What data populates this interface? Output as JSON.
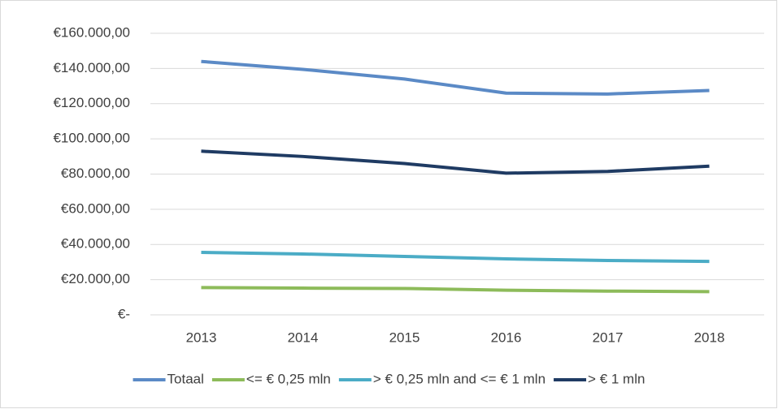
{
  "chart_data": {
    "type": "line",
    "categories": [
      "2013",
      "2014",
      "2015",
      "2016",
      "2017",
      "2018"
    ],
    "series": [
      {
        "name": "Totaal",
        "color": "#5b8ac6",
        "values": [
          144000,
          139500,
          134000,
          126000,
          125500,
          127500
        ]
      },
      {
        "name": "<= € 0,25 mln",
        "color": "#8dbb5a",
        "values": [
          15500,
          15200,
          15000,
          14000,
          13500,
          13200
        ]
      },
      {
        "name": "> € 0,25 mln and <= € 1 mln",
        "color": "#4bacc6",
        "values": [
          35500,
          34600,
          33200,
          31800,
          30900,
          30400
        ]
      },
      {
        "name": "> € 1 mln",
        "color": "#1f3b63",
        "values": [
          93000,
          90000,
          86000,
          80500,
          81500,
          84500
        ]
      }
    ],
    "ylim": [
      0,
      160000
    ],
    "yticks": [
      {
        "value": 0,
        "label": "€-"
      },
      {
        "value": 20000,
        "label": "€20.000,00"
      },
      {
        "value": 40000,
        "label": "€40.000,00"
      },
      {
        "value": 60000,
        "label": "€60.000,00"
      },
      {
        "value": 80000,
        "label": "€80.000,00"
      },
      {
        "value": 100000,
        "label": "€100.000,00"
      },
      {
        "value": 120000,
        "label": "€120.000,00"
      },
      {
        "value": 140000,
        "label": "€140.000,00"
      },
      {
        "value": 160000,
        "label": "€160.000,00"
      }
    ],
    "grid": true,
    "legend": "bottom"
  }
}
